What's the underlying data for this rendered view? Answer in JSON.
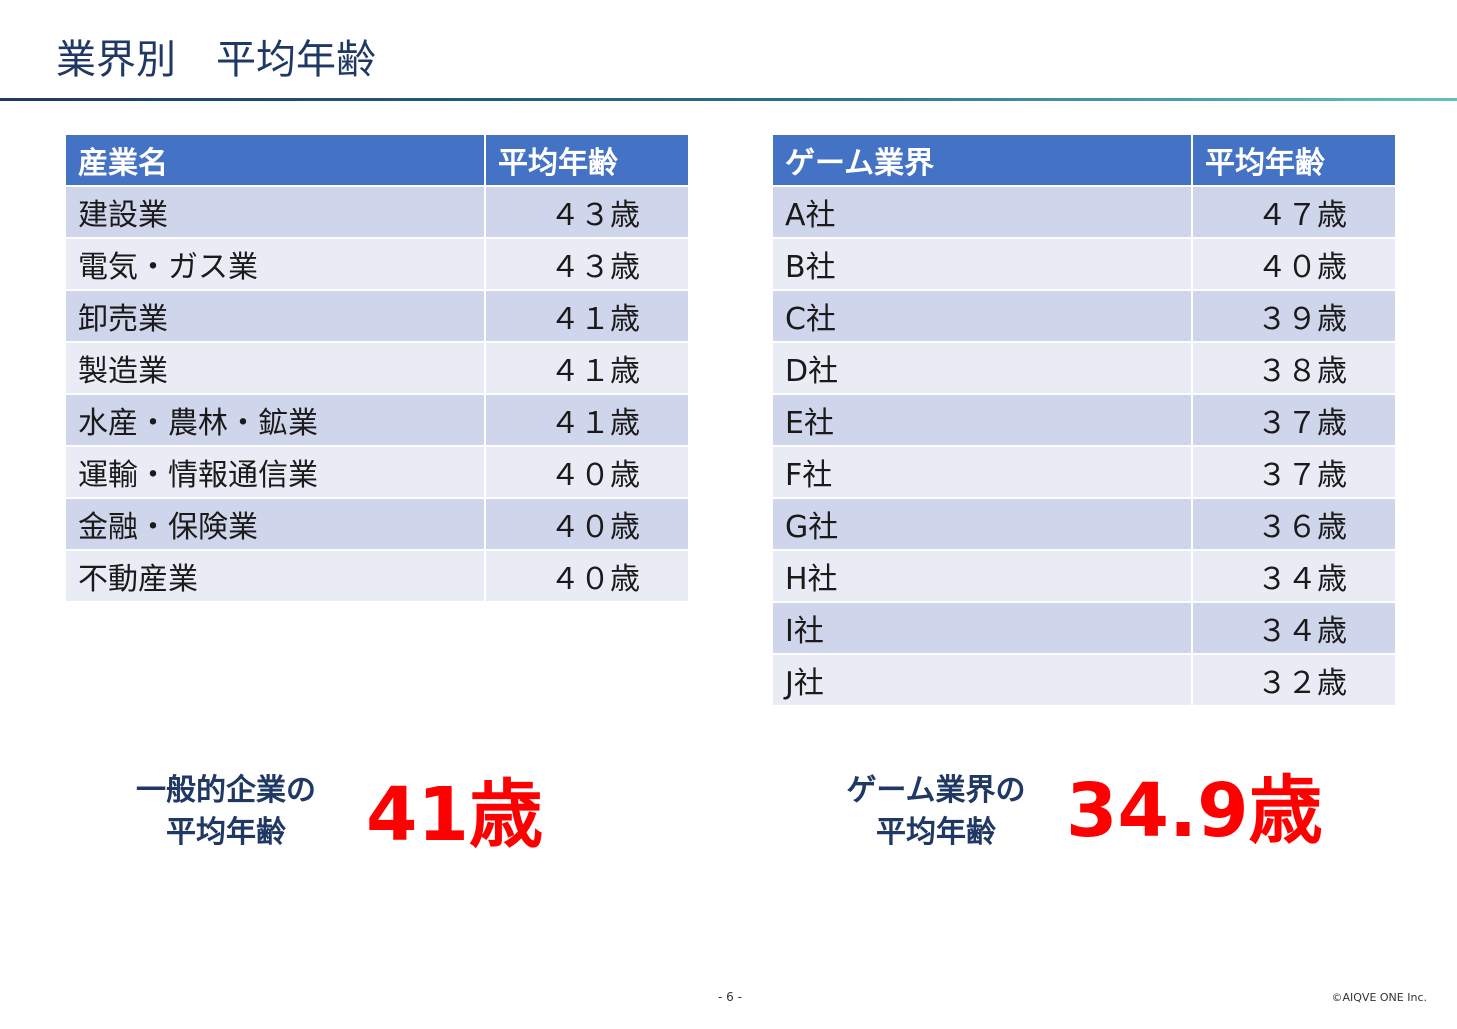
{
  "page_title": "業界別　平均年齢",
  "industry_table": {
    "headers": [
      "産業名",
      "平均年齢"
    ],
    "rows": [
      [
        "建設業",
        "４３歳"
      ],
      [
        "電気・ガス業",
        "４３歳"
      ],
      [
        "卸売業",
        "４１歳"
      ],
      [
        "製造業",
        "４１歳"
      ],
      [
        "水産・農林・鉱業",
        "４１歳"
      ],
      [
        "運輸・情報通信業",
        "４０歳"
      ],
      [
        "金融・保険業",
        "４０歳"
      ],
      [
        "不動産業",
        "４０歳"
      ]
    ]
  },
  "game_table": {
    "headers": [
      "ゲーム業界",
      "平均年齢"
    ],
    "rows": [
      [
        "A社",
        "４７歳"
      ],
      [
        "B社",
        "４０歳"
      ],
      [
        "C社",
        "３９歳"
      ],
      [
        "D社",
        "３８歳"
      ],
      [
        "E社",
        "３７歳"
      ],
      [
        "F社",
        "３７歳"
      ],
      [
        "G社",
        "３６歳"
      ],
      [
        "H社",
        "３４歳"
      ],
      [
        "I社",
        "３４歳"
      ],
      [
        "J社",
        "３２歳"
      ]
    ]
  },
  "summary": {
    "general": {
      "label_line1": "一般的企業の",
      "label_line2": "平均年齢",
      "value": "41歳"
    },
    "game": {
      "label_line1": "ゲーム業界の",
      "label_line2": "平均年齢",
      "value": "34.9歳"
    }
  },
  "footer": {
    "page_number": "- 6 -",
    "copyright": "©AIQVE ONE Inc."
  },
  "colors": {
    "title": "#1f3864",
    "table_header": "#4472c4",
    "row_band_dark": "#cfd5ea",
    "row_band_light": "#e9ebf5",
    "highlight_value": "#ff0000"
  }
}
